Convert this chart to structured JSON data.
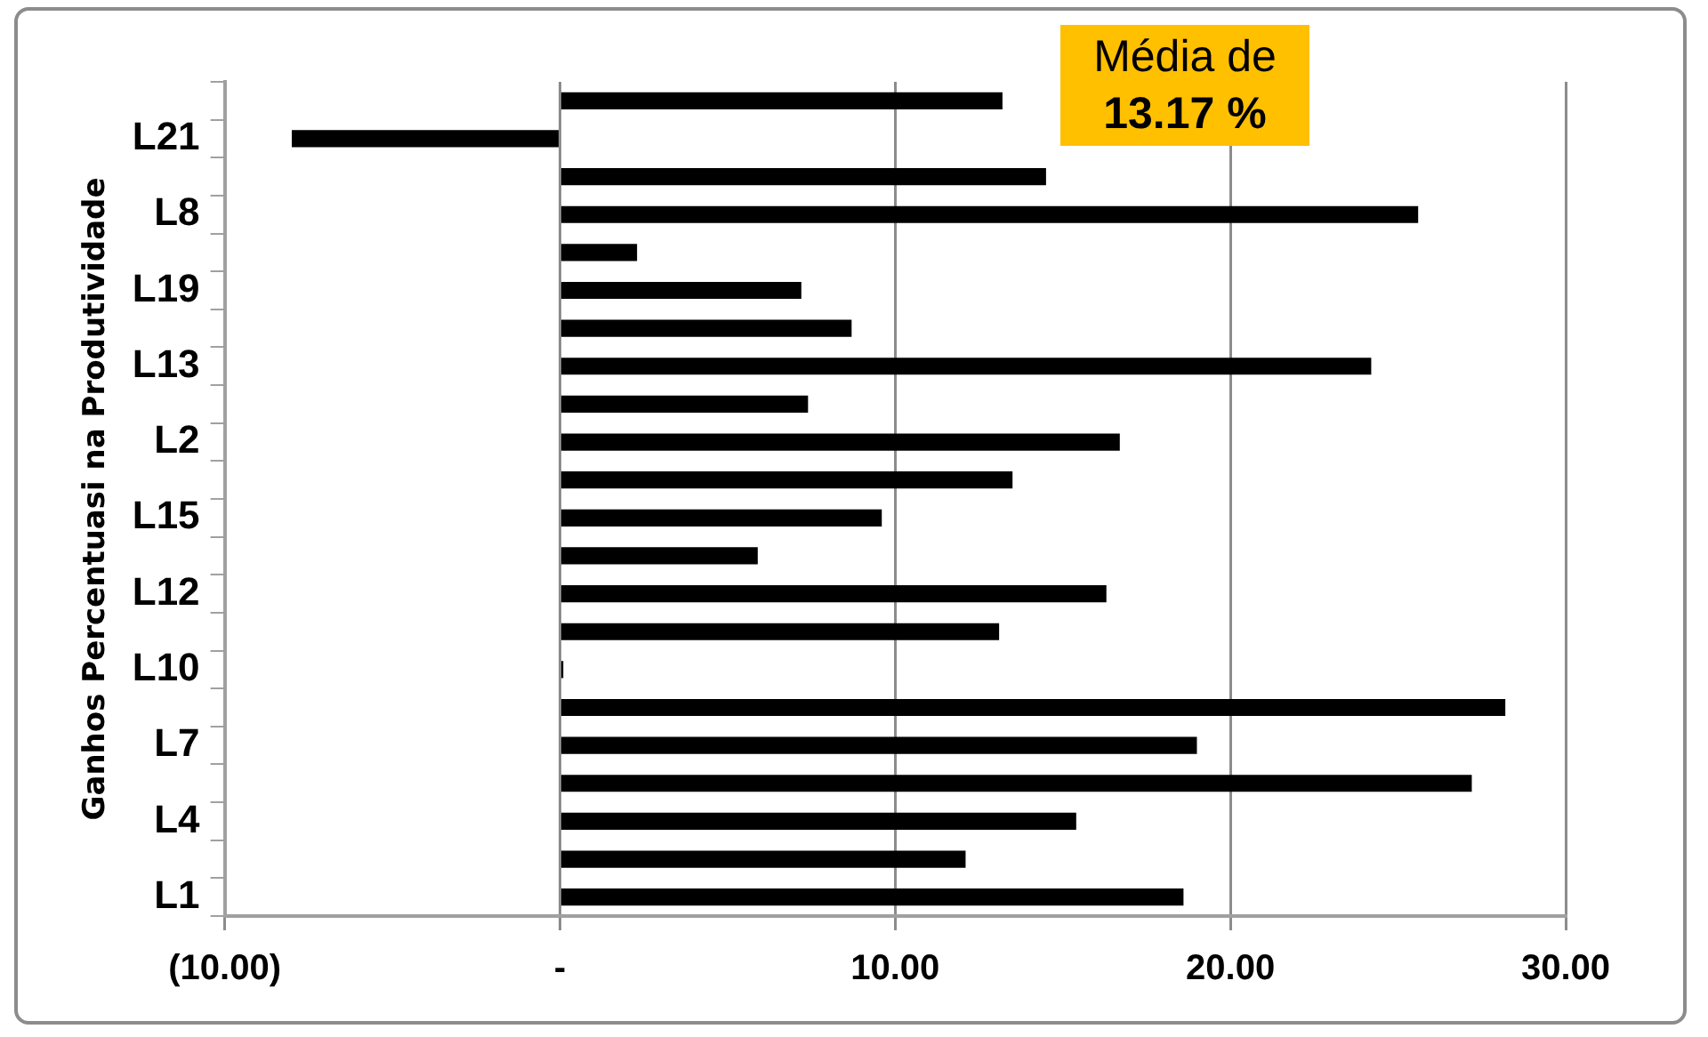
{
  "chart_data": {
    "type": "bar",
    "orientation": "horizontal",
    "ylabel": "Ganhos Percentuasi na Produtividade",
    "categories": [
      null,
      "L21",
      null,
      "L8",
      null,
      "L19",
      null,
      "L13",
      null,
      "L2",
      null,
      "L15",
      null,
      "L12",
      null,
      "L10",
      null,
      "L7",
      null,
      "L4",
      null,
      "L1"
    ],
    "values": [
      13.2,
      -8.0,
      14.5,
      25.6,
      2.3,
      7.2,
      8.7,
      24.2,
      7.4,
      16.7,
      13.5,
      9.6,
      5.9,
      16.3,
      13.1,
      0.1,
      28.2,
      19.0,
      27.2,
      15.4,
      12.1,
      18.6
    ],
    "color": "#000000",
    "xlim": [
      -10,
      30
    ],
    "xticks": [
      {
        "value": -10,
        "label": "(10.00)"
      },
      {
        "value": 0,
        "label": "-"
      },
      {
        "value": 10,
        "label": "10.00"
      },
      {
        "value": 20,
        "label": "20.00"
      },
      {
        "value": 30,
        "label": "30.00"
      }
    ],
    "grid": "x",
    "annotations": [
      "Média de",
      "13.17 %"
    ]
  }
}
